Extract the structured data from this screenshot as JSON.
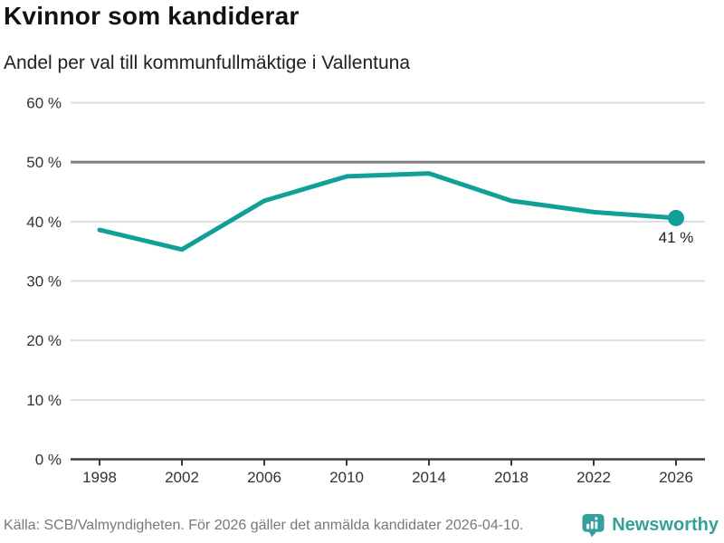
{
  "header": {
    "title": "Kvinnor som kandiderar",
    "subtitle": "Andel per val till kommunfullmäktige i Vallentuna"
  },
  "chart_data": {
    "type": "line",
    "title": "Kvinnor som kandiderar",
    "subtitle": "Andel per val till kommunfullmäktige i Vallentuna",
    "x": [
      1998,
      2002,
      2006,
      2010,
      2014,
      2018,
      2022,
      2026
    ],
    "values": [
      38.6,
      35.3,
      43.5,
      47.6,
      48.1,
      43.5,
      41.6,
      40.6
    ],
    "xtick_labels": [
      "1998",
      "2002",
      "2006",
      "2010",
      "2014",
      "2018",
      "2022",
      "2026"
    ],
    "yticks": [
      0,
      10,
      20,
      30,
      40,
      50,
      60
    ],
    "ytick_labels": [
      "0 %",
      "10 %",
      "20 %",
      "30 %",
      "40 %",
      "50 %",
      "60 %"
    ],
    "ylim": [
      0,
      60
    ],
    "xlabel": "",
    "ylabel": "",
    "grid": true,
    "emphasized_gridline": 50,
    "legend": "none",
    "end_point_label": "41 %"
  },
  "footer": {
    "source": "Källa: SCB/Valmyndigheten. För 2026 gäller det anmälda kandidater 2026-04-10.",
    "brand": "Newsworthy"
  },
  "colors": {
    "line": "#10a097",
    "dot": "#10a097",
    "grid": "#dedede",
    "grid_emphasis": "#7f7f7f",
    "axis": "#3a3a3a",
    "tick_text": "#333333",
    "annotation_text": "#222222",
    "title_text": "#111111",
    "footer_text": "#77777f",
    "brand": "#35a09a"
  }
}
